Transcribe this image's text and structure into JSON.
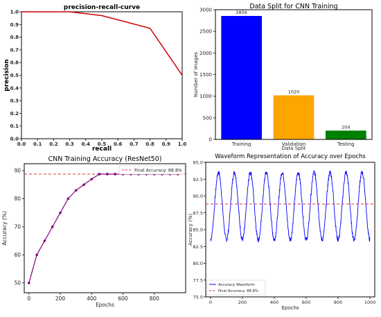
{
  "chart_data": [
    {
      "id": "pr",
      "type": "line",
      "title": "precision-recall-curve",
      "xlabel": "recall",
      "ylabel": "precision",
      "xlim": [
        0.0,
        1.0
      ],
      "ylim": [
        0.0,
        1.0
      ],
      "x_ticks": [
        0.0,
        0.1,
        0.2,
        0.3,
        0.4,
        0.5,
        0.6,
        0.7,
        0.8,
        0.9,
        1.0
      ],
      "y_ticks": [
        0.0,
        0.1,
        0.2,
        0.3,
        0.4,
        0.5,
        0.6,
        0.7,
        0.8,
        0.9,
        1.0
      ],
      "grid": false,
      "color": "#cc0000",
      "x": [
        0.0,
        0.3,
        0.5,
        0.8,
        1.0
      ],
      "y": [
        1.0,
        1.0,
        0.97,
        0.87,
        0.5
      ]
    },
    {
      "id": "split",
      "type": "bar",
      "title": "Data Split for CNN Training",
      "xlabel": "Data Split",
      "ylabel": "Number of Images",
      "categories": [
        "Training",
        "Validation",
        "Testing"
      ],
      "values": [
        2856,
        1020,
        204
      ],
      "data_labels": [
        "2856",
        "1020",
        "204"
      ],
      "colors": [
        "#0000ff",
        "#ffa500",
        "#008000"
      ],
      "ylim": [
        0,
        3000
      ],
      "y_ticks": [
        0,
        500,
        1000,
        1500,
        2000,
        2500,
        3000
      ],
      "grid": false
    },
    {
      "id": "acc",
      "type": "line",
      "title": "CNN Training Accuracy (ResNet50)",
      "xlabel": "Epochs",
      "ylabel": "Accuracy (%)",
      "xlim": [
        -30,
        1000
      ],
      "ylim": [
        46.5,
        92.5
      ],
      "x_ticks": [
        0,
        200,
        400,
        600,
        800
      ],
      "y_ticks": [
        50,
        60,
        70,
        80,
        90
      ],
      "grid": false,
      "legend_position": "top-right",
      "series": [
        {
          "color": "#800080",
          "x": [
            0,
            50,
            100,
            150,
            200,
            250,
            300,
            350,
            400,
            450,
            500,
            550,
            600,
            650,
            700,
            750,
            800,
            850,
            900,
            950
          ],
          "y": [
            50,
            60,
            65,
            70,
            75,
            80,
            83,
            85,
            87,
            88.8,
            88.8,
            88.8,
            88.8,
            88.8,
            88.8,
            88.8,
            88.8,
            88.8,
            88.8,
            88.8
          ]
        }
      ],
      "reference_line": {
        "name": "Final Accuracy: 88.8%",
        "value": 88.8,
        "color": "#e03030"
      }
    },
    {
      "id": "wave",
      "type": "line",
      "title": "Waveform Representation of Accuracy over Epochs",
      "xlabel": "Epochs",
      "ylabel": "Accuracy (%)",
      "xlim": [
        -30,
        1030
      ],
      "ylim": [
        75.0,
        95.0
      ],
      "x_ticks": [
        0,
        200,
        400,
        600,
        800,
        1000
      ],
      "y_ticks": [
        75.0,
        77.5,
        80.0,
        82.5,
        85.0,
        87.5,
        90.0,
        92.5,
        95.0
      ],
      "grid": false,
      "legend_position": "bottom-left",
      "series": [
        {
          "name": "Accuracy Waveform",
          "color": "#0000ff",
          "center": 88.5,
          "amplitude": 5,
          "period": 100,
          "noise": 0.35,
          "x_range": [
            0,
            1000
          ]
        }
      ],
      "reference_line": {
        "name": "Final Accuracy: 88.8%",
        "value": 88.8,
        "color": "#e03030"
      }
    }
  ]
}
